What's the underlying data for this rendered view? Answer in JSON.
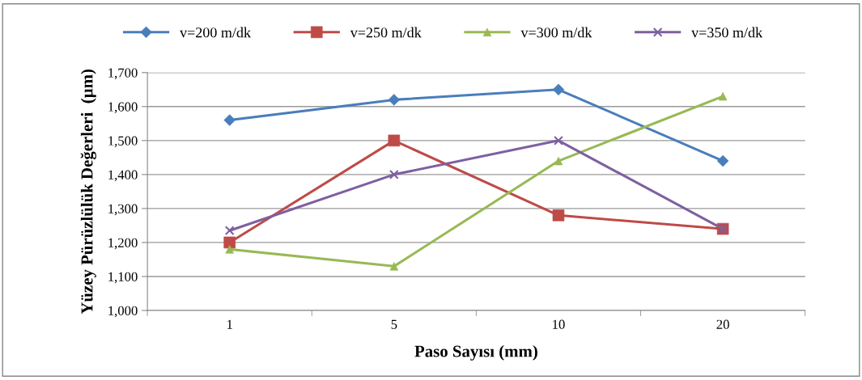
{
  "chart_data": {
    "type": "line",
    "xlabel": "Paso Sayısı (mm)",
    "ylabel": "Yüzey Pürüzlülük Değerleri  (µm)",
    "categories": [
      "1",
      "5",
      "10",
      "20"
    ],
    "series": [
      {
        "name": "v=200 m/dk",
        "color": "#4a7ebb",
        "marker": "diamond",
        "values": [
          1560,
          1620,
          1650,
          1440
        ]
      },
      {
        "name": "v=250 m/dk",
        "color": "#be4b48",
        "marker": "square",
        "values": [
          1200,
          1500,
          1280,
          1240
        ]
      },
      {
        "name": "v=300 m/dk",
        "color": "#98b954",
        "marker": "triangle",
        "values": [
          1180,
          1130,
          1440,
          1630
        ]
      },
      {
        "name": "v=350 m/dk",
        "color": "#7d60a0",
        "marker": "cross",
        "values": [
          1235,
          1400,
          1500,
          1240
        ]
      }
    ],
    "ylim": [
      1000,
      1700
    ],
    "yticks": [
      {
        "value": 1000,
        "label": "1,000"
      },
      {
        "value": 1100,
        "label": "1,100"
      },
      {
        "value": 1200,
        "label": "1,200"
      },
      {
        "value": 1300,
        "label": "1,300"
      },
      {
        "value": 1400,
        "label": "1,400"
      },
      {
        "value": 1500,
        "label": "1,500"
      },
      {
        "value": 1600,
        "label": "1,600"
      },
      {
        "value": 1700,
        "label": "1,700"
      }
    ],
    "grid": "y",
    "legend": "top",
    "line_style": "solid"
  }
}
